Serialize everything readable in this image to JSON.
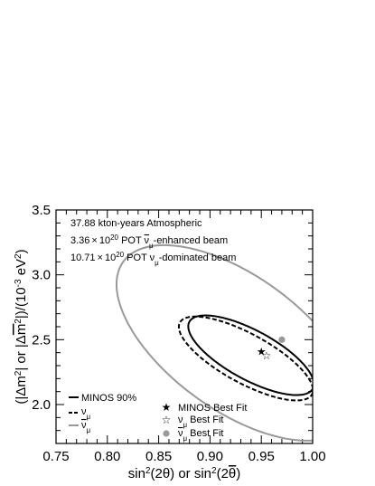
{
  "chart_data": {
    "type": "line",
    "xlabel": "sin²(2θ) or sin²(2θ̅)",
    "ylabel": "(|Δm²| or |Δm̅²|)/(10⁻³ eV²)",
    "xlim": [
      0.75,
      1.0
    ],
    "ylim": [
      1.7,
      3.5
    ],
    "x_ticks": [
      "0.75",
      "0.80",
      "0.85",
      "0.90",
      "0.95",
      "1.00"
    ],
    "y_ticks": [
      "2.0",
      "2.5",
      "3.0",
      "3.5"
    ],
    "annotations": [
      "37.88 kton-years Atmospheric",
      "3.36×10²⁰ POT ν̅μ-enhanced beam",
      "10.71×10²⁰ POT νμ-dominated beam"
    ],
    "series": [
      {
        "name": "MINOS 90%",
        "color": "#000000",
        "dash": "solid",
        "ellipse": {
          "cx": 0.94,
          "cy": 2.38,
          "rx": 0.07,
          "ry": 0.185,
          "tilt": -0.55
        }
      },
      {
        "name": "νμ",
        "color": "#000000",
        "dash": "dashed",
        "ellipse": {
          "cx": 0.935,
          "cy": 2.355,
          "rx": 0.075,
          "ry": 0.185,
          "tilt": -0.55
        }
      },
      {
        "name": "ν̅μ",
        "color": "#999999",
        "dash": "solid",
        "ellipse": {
          "cx": 0.925,
          "cy": 2.475,
          "rx": 0.14,
          "ry": 0.5,
          "tilt": -0.7
        }
      }
    ],
    "best_fits": [
      {
        "name": "MINOS Best Fit",
        "x": 0.95,
        "y": 2.41,
        "marker": "filled-star",
        "color": "#000000"
      },
      {
        "name": "νμ Best Fit",
        "x": 0.955,
        "y": 2.38,
        "marker": "open-star",
        "color": "#000000"
      },
      {
        "name": "ν̅μ Best Fit",
        "x": 0.97,
        "y": 2.5,
        "marker": "circle",
        "color": "#999999"
      }
    ]
  }
}
